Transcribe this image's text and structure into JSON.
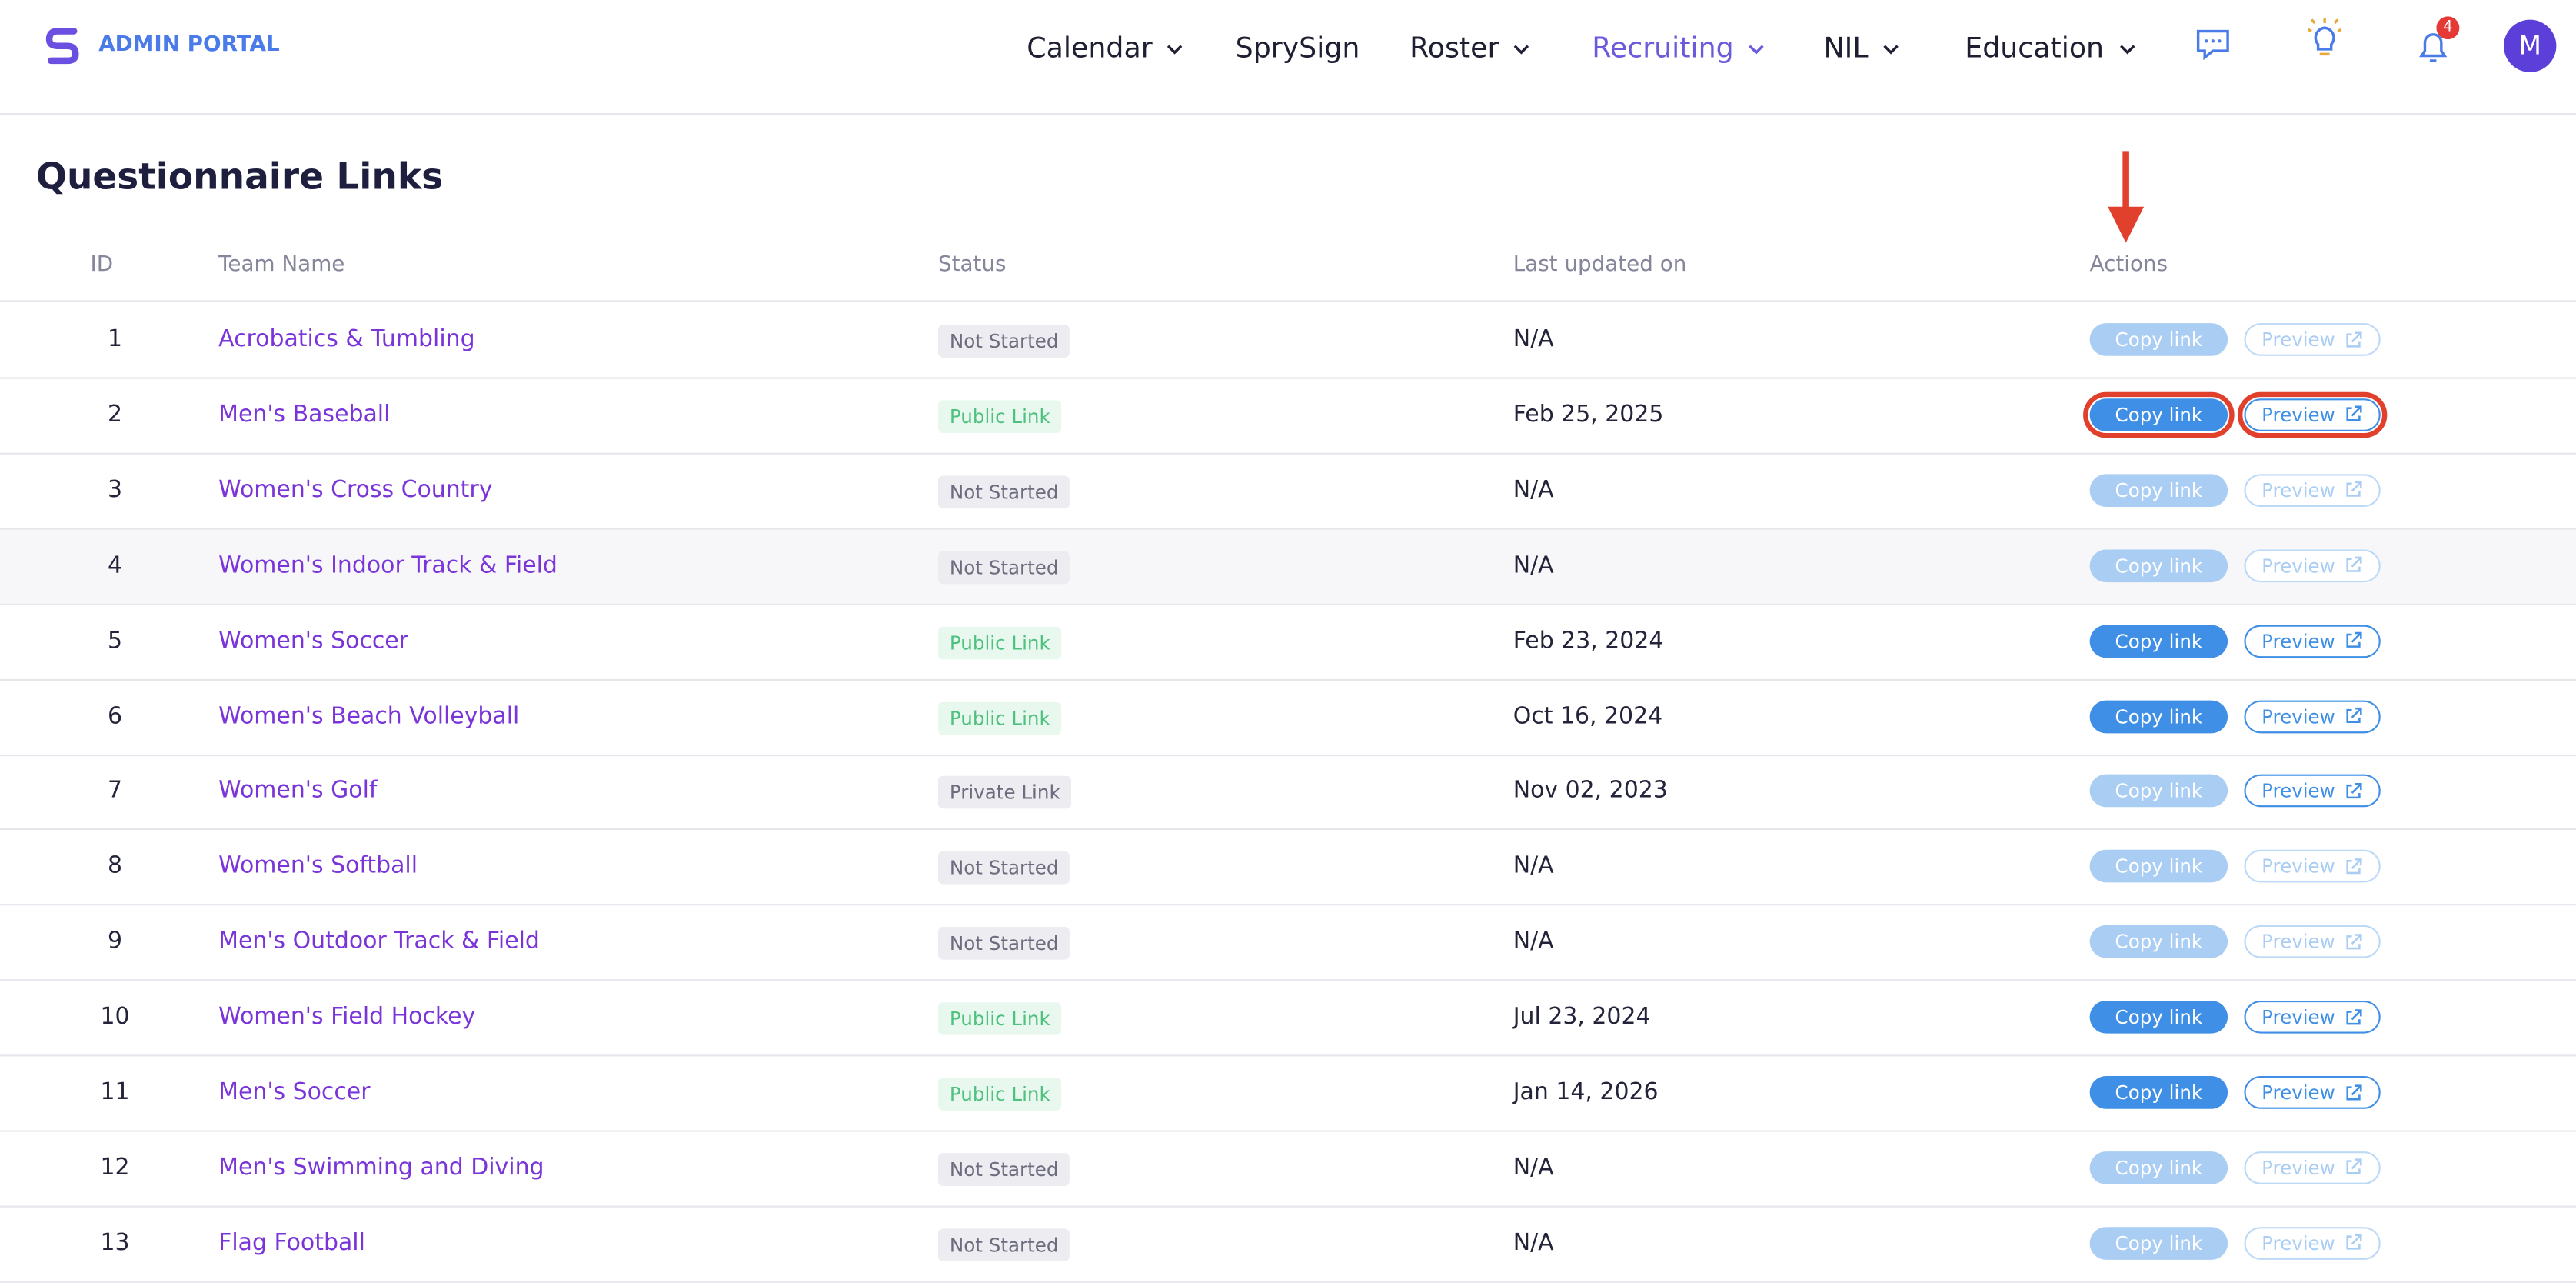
{
  "header": {
    "brand": "ADMIN PORTAL",
    "nav": [
      {
        "label": "Calendar",
        "dropdown": true,
        "active": false
      },
      {
        "label": "SprySign",
        "dropdown": false,
        "active": false
      },
      {
        "label": "Roster",
        "dropdown": true,
        "active": false
      },
      {
        "label": "Recruiting",
        "dropdown": true,
        "active": true
      },
      {
        "label": "NIL",
        "dropdown": true,
        "active": false
      },
      {
        "label": "Education",
        "dropdown": true,
        "active": false
      }
    ],
    "notification_count": "4",
    "avatar": "M"
  },
  "page": {
    "title": "Questionnaire Links"
  },
  "table": {
    "columns": [
      "ID",
      "Team Name",
      "Status",
      "Last updated on",
      "Actions"
    ],
    "actions": {
      "copy": "Copy link",
      "preview": "Preview"
    },
    "rows": [
      {
        "id": "1",
        "team": "Acrobatics & Tumbling",
        "status": "Not Started",
        "updated": "N/A",
        "active": false,
        "highlighted": false,
        "hovered": false
      },
      {
        "id": "2",
        "team": "Men's Baseball",
        "status": "Public Link",
        "updated": "Feb 25, 2025",
        "active": true,
        "highlighted": true,
        "hovered": false
      },
      {
        "id": "3",
        "team": "Women's Cross Country",
        "status": "Not Started",
        "updated": "N/A",
        "active": false,
        "highlighted": false,
        "hovered": false
      },
      {
        "id": "4",
        "team": "Women's Indoor Track & Field",
        "status": "Not Started",
        "updated": "N/A",
        "active": false,
        "highlighted": false,
        "hovered": true
      },
      {
        "id": "5",
        "team": "Women's Soccer",
        "status": "Public Link",
        "updated": "Feb 23, 2024",
        "active": true,
        "highlighted": false,
        "hovered": false
      },
      {
        "id": "6",
        "team": "Women's Beach Volleyball",
        "status": "Public Link",
        "updated": "Oct 16, 2024",
        "active": true,
        "highlighted": false,
        "hovered": false
      },
      {
        "id": "7",
        "team": "Women's Golf",
        "status": "Private Link",
        "updated": "Nov 02, 2023",
        "active": "copy-disabled",
        "highlighted": false,
        "hovered": false
      },
      {
        "id": "8",
        "team": "Women's Softball",
        "status": "Not Started",
        "updated": "N/A",
        "active": false,
        "highlighted": false,
        "hovered": false
      },
      {
        "id": "9",
        "team": "Men's Outdoor Track & Field",
        "status": "Not Started",
        "updated": "N/A",
        "active": false,
        "highlighted": false,
        "hovered": false
      },
      {
        "id": "10",
        "team": "Women's Field Hockey",
        "status": "Public Link",
        "updated": "Jul 23, 2024",
        "active": true,
        "highlighted": false,
        "hovered": false
      },
      {
        "id": "11",
        "team": "Men's Soccer",
        "status": "Public Link",
        "updated": "Jan 14, 2026",
        "active": true,
        "highlighted": false,
        "hovered": false
      },
      {
        "id": "12",
        "team": "Men's Swimming and Diving",
        "status": "Not Started",
        "updated": "N/A",
        "active": false,
        "highlighted": false,
        "hovered": false
      },
      {
        "id": "13",
        "team": "Flag Football",
        "status": "Not Started",
        "updated": "N/A",
        "active": false,
        "highlighted": false,
        "hovered": false
      }
    ]
  }
}
